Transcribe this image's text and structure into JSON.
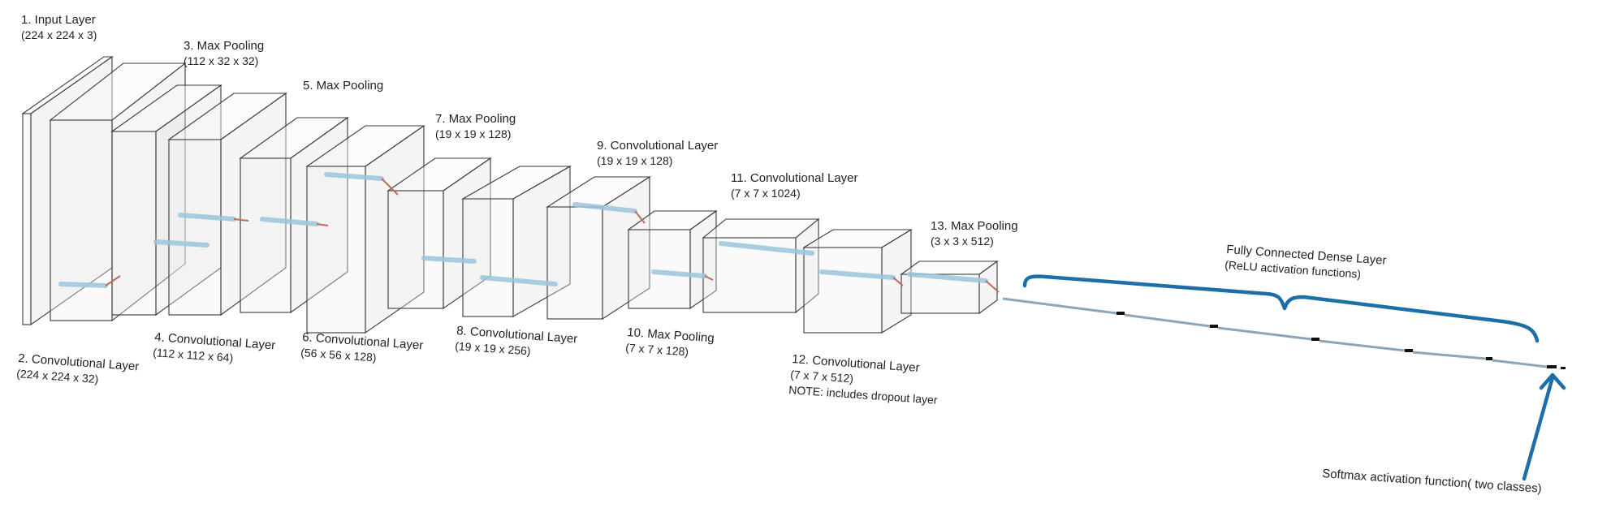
{
  "layers": [
    {
      "name": "1. Input Layer",
      "dims": "(224 x 224 x 3)"
    },
    {
      "name": "2. Convolutional Layer",
      "dims": "(224 x 224 x 32)"
    },
    {
      "name": "3. Max Pooling",
      "dims": "(112 x 32 x 32)"
    },
    {
      "name": "4. Convolutional Layer",
      "dims": "(112 x 112 x 64)"
    },
    {
      "name": "5. Max Pooling",
      "dims": ""
    },
    {
      "name": "6. Convolutional Layer",
      "dims": "(56 x 56 x 128)"
    },
    {
      "name": "7. Max Pooling",
      "dims": "(19 x 19 x 128)"
    },
    {
      "name": "8. Convolutional Layer",
      "dims": "(19 x 19 x 256)"
    },
    {
      "name": "9. Convolutional Layer",
      "dims": "(19 x 19 x 128)"
    },
    {
      "name": "10. Max Pooling",
      "dims": "(7 x 7 x 128)"
    },
    {
      "name": "11. Convolutional Layer",
      "dims": "(7 x 7 x 1024)"
    },
    {
      "name": "12. Convolutional Layer",
      "dims": "(7 x 7 x 512)",
      "note": "NOTE: includes dropout layer"
    },
    {
      "name": "13. Max Pooling",
      "dims": "(3 x 3 x 512)"
    }
  ],
  "dense": {
    "name": "Fully Connected Dense Layer",
    "activation": "(ReLU activation functions)"
  },
  "output": {
    "label": "Softmax activation function( two classes)"
  },
  "colors": {
    "accent": "#1e6fa8",
    "filter": "#9cc6dc",
    "outline": "#3a3a3a"
  }
}
